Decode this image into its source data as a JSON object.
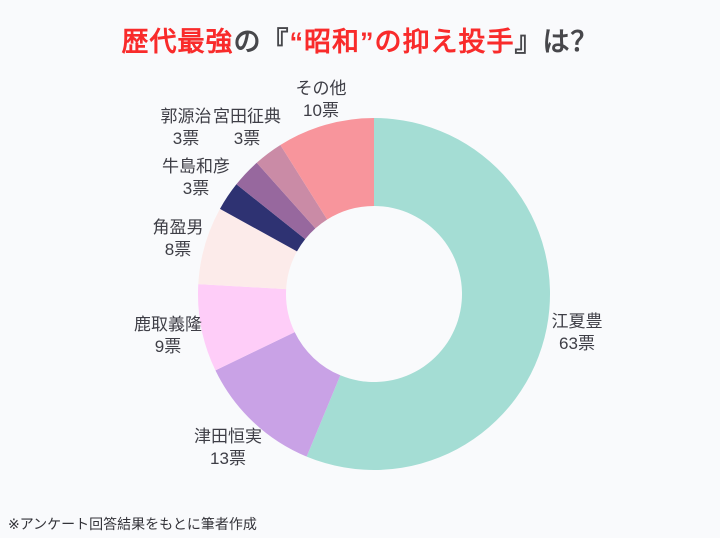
{
  "page": {
    "background_color": "#f9fafc"
  },
  "title": {
    "full_text": "歴代最強の『“昭和”の抑え投手』は？",
    "segments": [
      {
        "text": "歴代最強",
        "color": "#f92b2b"
      },
      {
        "text": "の『",
        "color": "#47474b"
      },
      {
        "text": "“昭和”の抑え投手",
        "color": "#f92b2b"
      },
      {
        "text": "』は？",
        "color": "#47474b"
      }
    ]
  },
  "chart_data": {
    "type": "pie",
    "variant": "donut",
    "title": "歴代最強の『“昭和”の抑え投手』は？",
    "unit": "票",
    "direction": "clockwise",
    "start_angle_deg": 0,
    "legend_position": "labels-around-chart",
    "categories": [
      "江夏豊",
      "津田恒実",
      "鹿取義隆",
      "角盈男",
      "牛島和彦",
      "郭源治",
      "宮田征典",
      "その他"
    ],
    "values": [
      63,
      13,
      9,
      8,
      3,
      3,
      3,
      10
    ],
    "vote_labels": [
      "63票",
      "13票",
      "9票",
      "8票",
      "3票",
      "3票",
      "3票",
      "10票"
    ],
    "colors": [
      "#a4ddd4",
      "#c9a2e6",
      "#fecdf8",
      "#fcebea",
      "#2e3272",
      "#97689e",
      "#ca8ba6",
      "#f8959c"
    ],
    "label_color": "#3e3e46"
  },
  "footer": {
    "note": "※アンケート回答結果をもとに筆者作成"
  }
}
